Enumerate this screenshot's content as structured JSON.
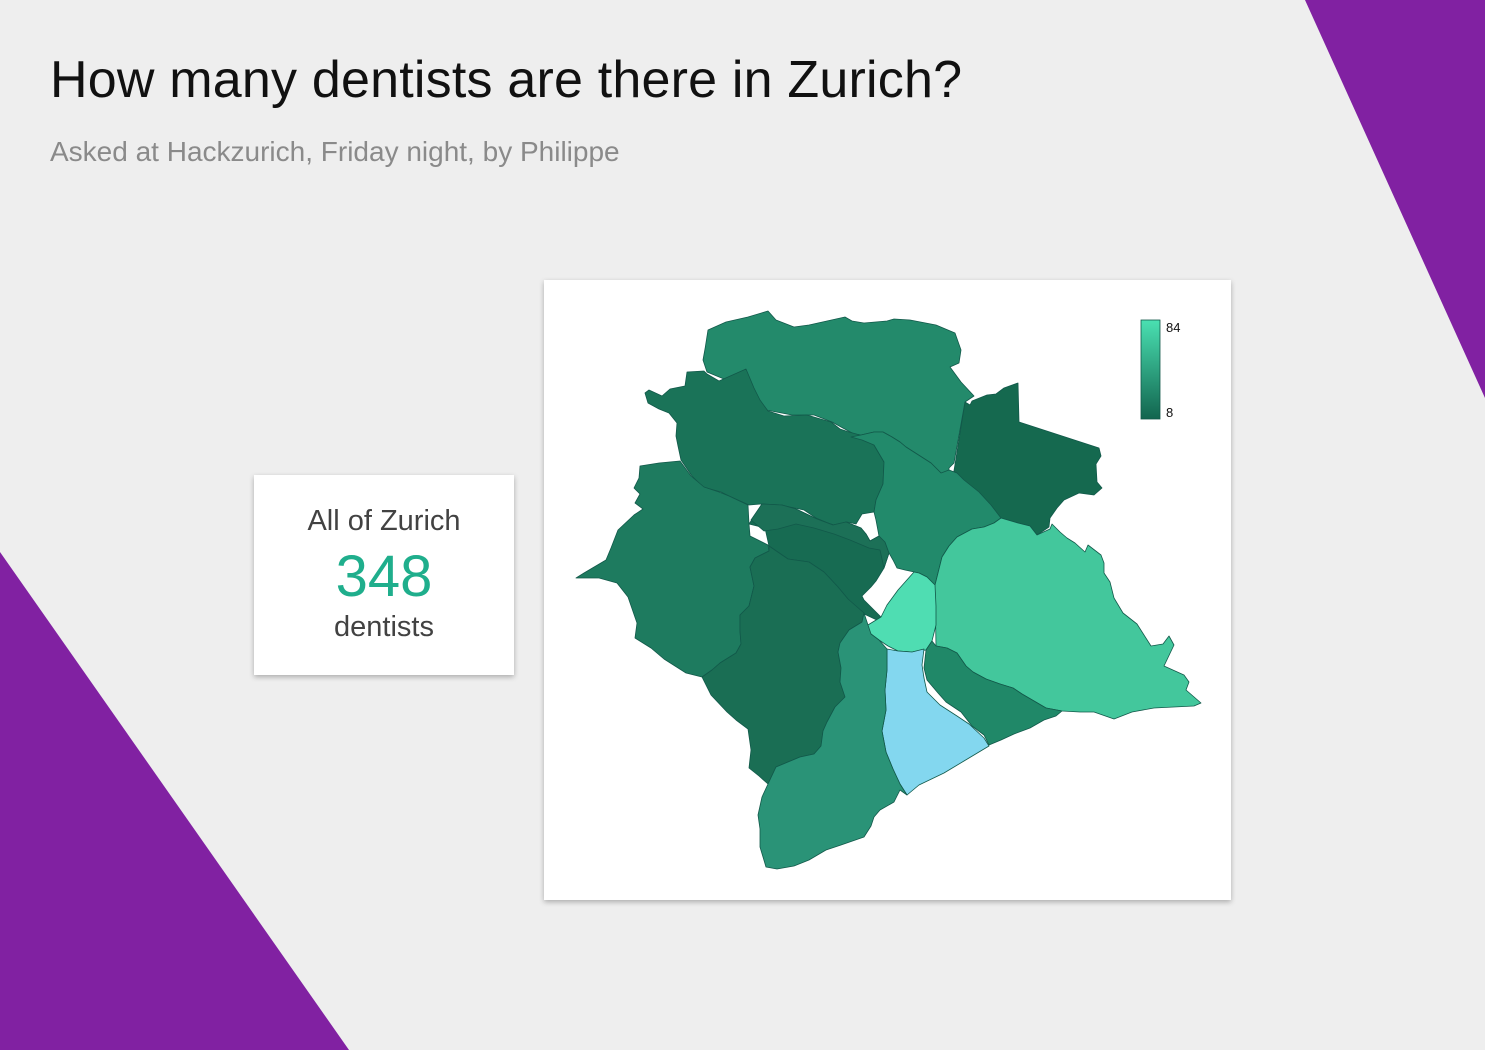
{
  "header": {
    "title": "How many dentists are there in Zurich?",
    "subtitle": "Asked at Hackzurich, Friday night, by Philippe"
  },
  "summary": {
    "label": "All of Zurich",
    "value": "348",
    "unit": "dentists"
  },
  "map": {
    "legend": {
      "max_label": "84",
      "min_label": "8"
    },
    "color_scale": {
      "low": "#12654f",
      "high": "#4ae0b2"
    },
    "water_color": "#83d7ef",
    "highlight_color": "#4fddb2"
  },
  "colors": {
    "background": "#eeeeee",
    "accent_purple": "#8121a2",
    "accent_teal": "#1fae8c"
  }
}
